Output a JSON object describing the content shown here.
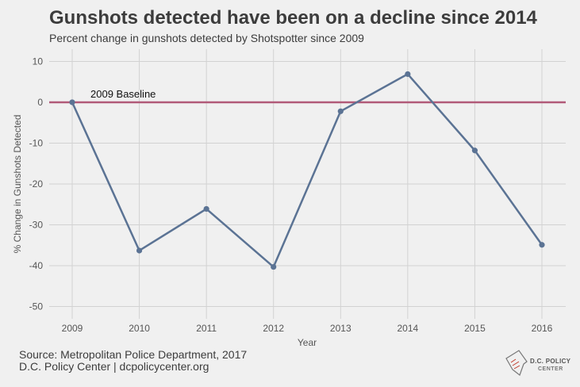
{
  "title": "Gunshots detected have been on a decline since 2014",
  "subtitle": "Percent change in gunshots detected by Shotspotter since 2009",
  "source_line1": "Source: Metropolitan Police Department, 2017",
  "source_line2": "D.C. Policy Center | dcpolicycenter.org",
  "logo": {
    "line1": "D.C. POLICY",
    "line2": "CENTER",
    "icon": "dc-map-icon"
  },
  "colors": {
    "background": "#f0f0f0",
    "line": "#5b7394",
    "baseline": "#b15a78",
    "grid": "#d2d2d2",
    "text": "#3c3c3c"
  },
  "chart_data": {
    "type": "line",
    "title": "Gunshots detected have been on a decline since 2014",
    "subtitle": "Percent change in gunshots detected by Shotspotter since 2009",
    "xlabel": "Year",
    "ylabel": "% Change in Gunshots Detected",
    "x": [
      "2009",
      "2010",
      "2011",
      "2012",
      "2013",
      "2014",
      "2015",
      "2016"
    ],
    "values": [
      0,
      -36.3,
      -26.1,
      -40.3,
      -2.2,
      6.9,
      -11.8,
      -34.9
    ],
    "ylim": [
      -53,
      13
    ],
    "yticks": [
      10,
      0,
      -10,
      -20,
      -30,
      -40,
      -50
    ],
    "grid": true,
    "baseline": {
      "value": 0,
      "label": "2009 Baseline"
    }
  }
}
